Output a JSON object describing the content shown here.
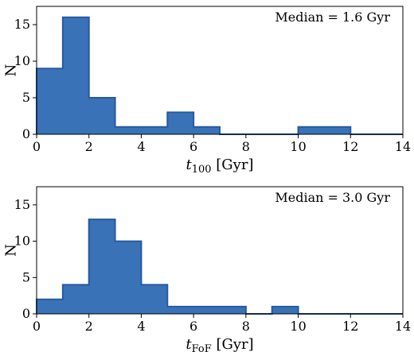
{
  "colors": {
    "bar_fill": "#3a72b8",
    "bar_edge": "#2759a0",
    "axis": "#000000"
  },
  "chart_data": [
    {
      "type": "bar",
      "title": "",
      "xlabel": "t100 [Gyr]",
      "xlabel_main": "t",
      "xlabel_sub": "100",
      "xlabel_unit": " [Gyr]",
      "ylabel": "N",
      "xlim": [
        0,
        14
      ],
      "ylim": [
        0,
        17.5
      ],
      "xticks": [
        0,
        2,
        4,
        6,
        8,
        10,
        12,
        14
      ],
      "yticks": [
        0,
        5,
        10,
        15
      ],
      "annotation": "Median = 1.6 Gyr",
      "grid": false,
      "bin_edges": [
        0,
        1,
        2,
        3,
        4,
        5,
        6,
        7,
        8,
        9,
        10,
        11,
        12,
        13,
        14
      ],
      "values": [
        9,
        16,
        5,
        1,
        1,
        3,
        1,
        0,
        0,
        0,
        1,
        1,
        0,
        0
      ]
    },
    {
      "type": "bar",
      "title": "",
      "xlabel": "tFoF [Gyr]",
      "xlabel_main": "t",
      "xlabel_sub": "FoF",
      "xlabel_unit": " [Gyr]",
      "ylabel": "N",
      "xlim": [
        0,
        14
      ],
      "ylim": [
        0,
        17.5
      ],
      "xticks": [
        0,
        2,
        4,
        6,
        8,
        10,
        12,
        14
      ],
      "yticks": [
        0,
        5,
        10,
        15
      ],
      "annotation": "Median = 3.0 Gyr",
      "grid": false,
      "bin_edges": [
        0,
        1,
        2,
        3,
        4,
        5,
        6,
        7,
        8,
        9,
        10,
        11,
        12,
        13,
        14
      ],
      "values": [
        2,
        4,
        13,
        10,
        4,
        1,
        1,
        1,
        0,
        1,
        0,
        0,
        0,
        0
      ]
    }
  ]
}
